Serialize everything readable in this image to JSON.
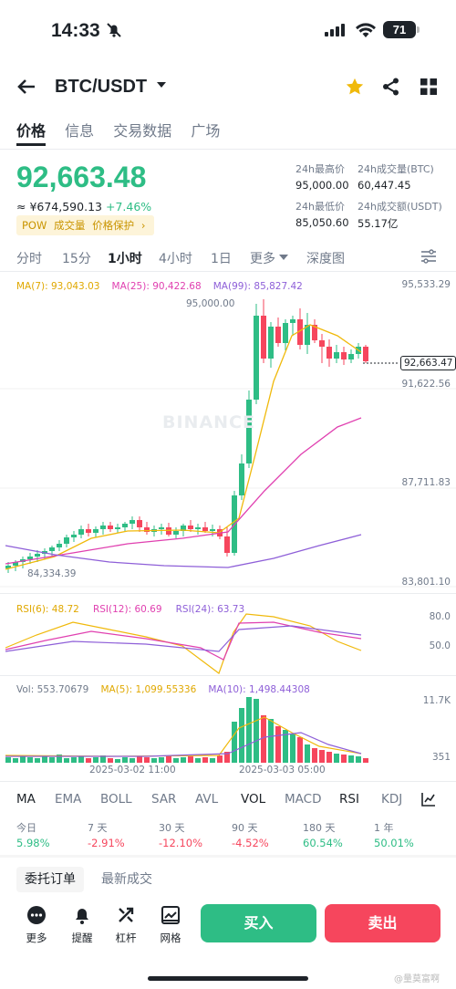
{
  "status_bar": {
    "time": "14:33",
    "battery": "71"
  },
  "header": {
    "pair": "BTC/USDT"
  },
  "top_tabs": [
    "价格",
    "信息",
    "交易数据",
    "广场"
  ],
  "ticker": {
    "last_price": "92,663.48",
    "cny_price": "≈ ¥674,590.13",
    "change": "+7.46%",
    "tags": [
      "POW",
      "成交量",
      "价格保护"
    ],
    "tag_more": "›",
    "stats": [
      {
        "label": "24h最高价",
        "value": "95,000.00"
      },
      {
        "label": "24h成交量(BTC)",
        "value": "60,447.45"
      },
      {
        "label": "24h最低价",
        "value": "85,050.60"
      },
      {
        "label": "24h成交额(USDT)",
        "value": "55.17亿"
      }
    ]
  },
  "intervals": [
    "分时",
    "15分",
    "1小时",
    "4小时",
    "1日",
    "更多",
    "深度图"
  ],
  "active_interval": "1小时",
  "colors": {
    "up": "#2ebd85",
    "down": "#f6465d",
    "ma7": "#f0b90b",
    "ma25": "#e040b0",
    "ma99": "#8e5fd8",
    "accent": "#f0b90b"
  },
  "chart": {
    "ma_legend": [
      {
        "label": "MA(7): 93,043.03",
        "color": "#e0a800"
      },
      {
        "label": "MA(25): 90,422.68",
        "color": "#e040b0"
      },
      {
        "label": "MA(99): 85,827.42",
        "color": "#8e5fd8"
      }
    ],
    "price_axis": [
      "95,533.29",
      "91,622.56",
      "87,711.83",
      "83,801.10"
    ],
    "high_label": "95,000.00",
    "low_label": "84,334.39",
    "current_price_tag": "92,663.47",
    "watermark": "BINANCE",
    "rsi_legend": [
      {
        "label": "RSI(6): 48.72",
        "color": "#e0a800"
      },
      {
        "label": "RSI(12): 60.69",
        "color": "#e040b0"
      },
      {
        "label": "RSI(24): 63.73",
        "color": "#8e5fd8"
      }
    ],
    "rsi_axis": [
      "80.0",
      "50.0"
    ],
    "vol_legend": [
      {
        "label": "Vol: 553.70679",
        "color": "#1e2329"
      },
      {
        "label": "MA(5): 1,099.55336",
        "color": "#e0a800"
      },
      {
        "label": "MA(10): 1,498.44308",
        "color": "#8e5fd8"
      }
    ],
    "vol_axis": [
      "11.7K",
      "351"
    ],
    "time_axis": [
      "2025-03-02 11:00",
      "2025-03-03 05:00"
    ]
  },
  "indicator_tabs": [
    "MA",
    "EMA",
    "BOLL",
    "SAR",
    "AVL",
    "VOL",
    "MACD",
    "RSI",
    "KDJ"
  ],
  "performance": [
    {
      "period": "今日",
      "value": "5.98%",
      "dir": "up"
    },
    {
      "period": "7 天",
      "value": "-2.91%",
      "dir": "dn"
    },
    {
      "period": "30 天",
      "value": "-12.10%",
      "dir": "dn"
    },
    {
      "period": "90 天",
      "value": "-4.52%",
      "dir": "dn"
    },
    {
      "period": "180 天",
      "value": "60.54%",
      "dir": "up"
    },
    {
      "period": "1 年",
      "value": "50.01%",
      "dir": "up"
    }
  ],
  "orderbook_tabs": [
    "委托订单",
    "最新成交"
  ],
  "bottom_bar": {
    "items": [
      "更多",
      "提醒",
      "杠杆",
      "网格"
    ],
    "buy": "买入",
    "sell": "卖出"
  },
  "weibo_watermark": "@量莫富啊"
}
